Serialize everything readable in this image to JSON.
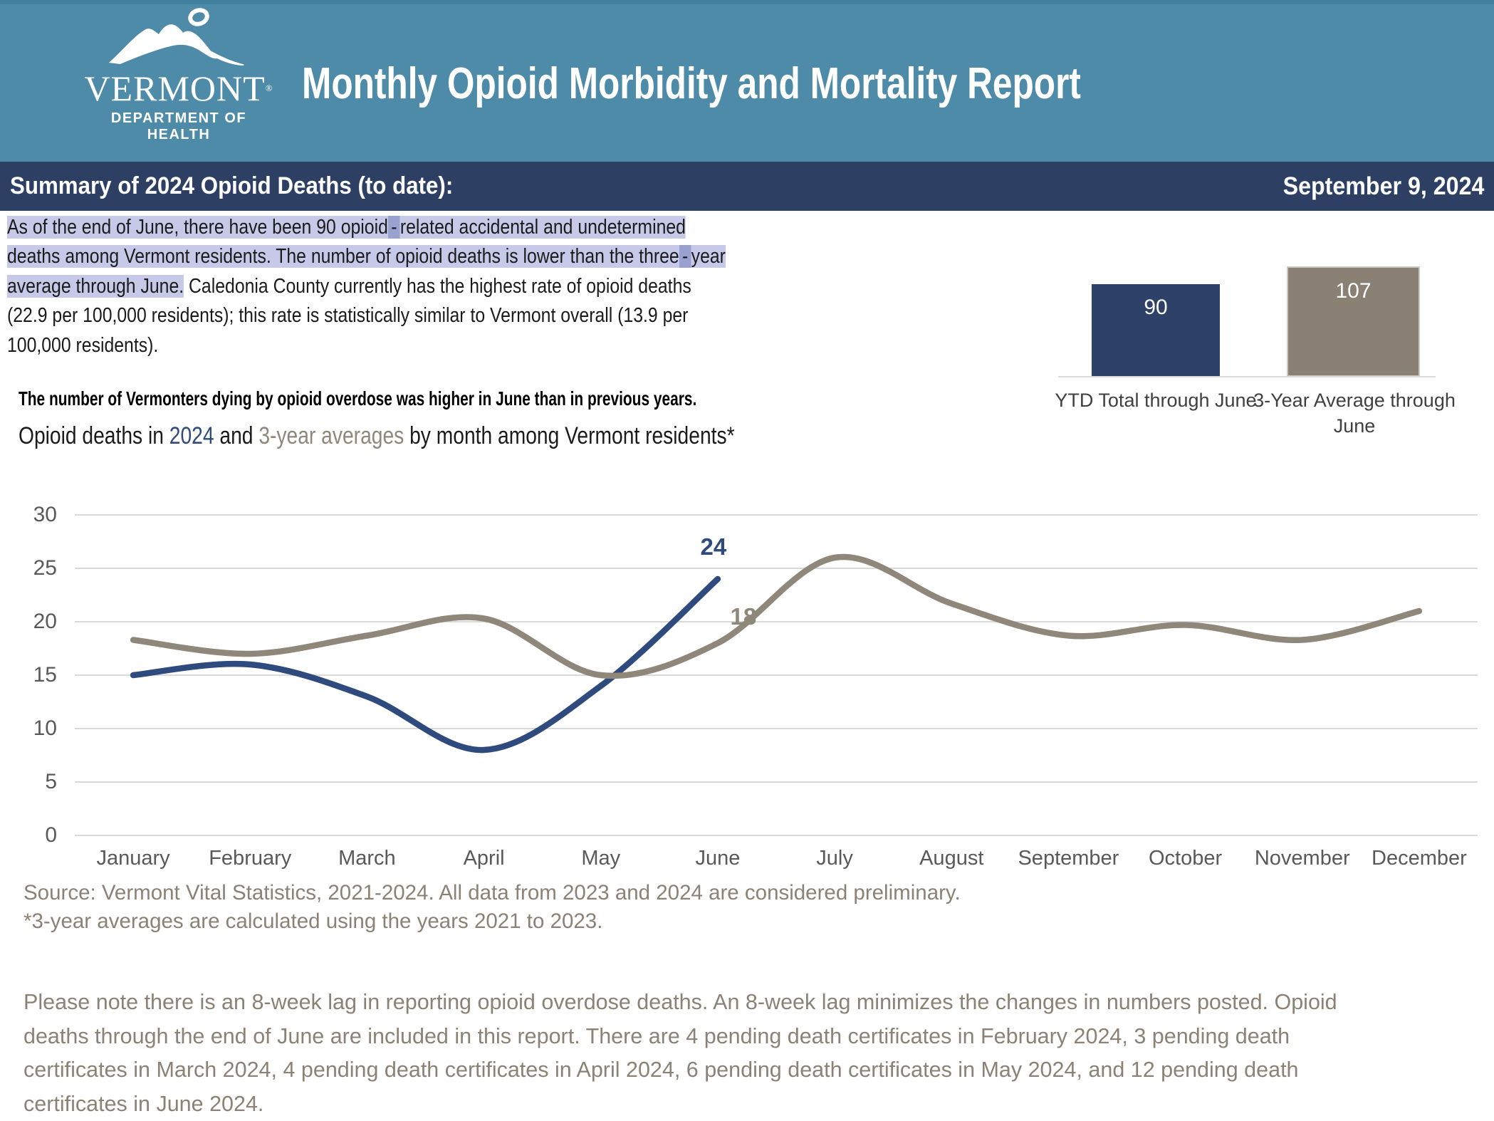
{
  "header": {
    "logo_name": "VERMONT",
    "logo_registered": "®",
    "logo_subtitle": "DEPARTMENT OF HEALTH",
    "title": "Monthly Opioid Morbidity and Mortality Report"
  },
  "summary_bar": {
    "title": "Summary of 2024 Opioid Deaths (to date):",
    "date": "September 9, 2024"
  },
  "summary_paragraph_lines": [
    [
      {
        "t": "As of the end of June, there have been 90 opioid",
        "s": "hl"
      },
      {
        "t": "-",
        "s": "hld"
      },
      {
        "t": "related accidental and undetermined",
        "s": "hl"
      }
    ],
    [
      {
        "t": "deaths among Vermont residents. The number of opioid deaths is lower than the three",
        "s": "hl"
      },
      {
        "t": "-",
        "s": "hld"
      },
      {
        "t": "year",
        "s": "hl"
      }
    ],
    [
      {
        "t": "average through June.",
        "s": "hl"
      },
      {
        "t": " Caledonia County currently has the highest rate of opioid deaths",
        "s": "pl"
      }
    ],
    [
      {
        "t": "(22.9 per 100,000 residents); this rate is statistically similar to Vermont overall (13.9 per",
        "s": "pl"
      }
    ],
    [
      {
        "t": "100,000 residents).",
        "s": "pl"
      }
    ]
  ],
  "headline": "The number of Vermonters dying by opioid overdose was higher in June than in previous years.",
  "chart_heading": {
    "pre": "Opioid deaths in ",
    "series_2024": "2024",
    "mid": " and ",
    "series_avg": "3-year averages",
    "post": " by month among Vermont residents*"
  },
  "source_lines": [
    "Source: Vermont Vital Statistics, 2021-2024. All data from 2023 and 2024 are considered preliminary.",
    "*3-year averages are calculated using the years 2021 to 2023."
  ],
  "footer_lines": [
    "Please note there is an 8-week lag in reporting opioid overdose deaths. An 8-week lag minimizes the changes in numbers posted. Opioid",
    "deaths through the end of June are included in this report. There are 4 pending death certificates in February 2024, 3 pending death",
    "certificates in March 2024, 4 pending death certificates in April 2024, 6 pending death certificates in May 2024, and 12 pending death",
    "certificates in June 2024."
  ],
  "colors": {
    "header_teal": "#4d8ba9",
    "summary_bar_navy": "#2d3f62",
    "series_2024_navy": "#2f4a7c",
    "series_avg_taupe": "#8f877a",
    "ytd_bar_navy": "#2e4269",
    "ytd_bar_taupe": "#8a8174",
    "highlight": "#c6cae8",
    "highlight_dark": "#98a1cf",
    "muted_text": "#8b8275",
    "axis_text": "#595959",
    "gridline": "#d9d9d9"
  },
  "chart_data": [
    {
      "type": "bar",
      "categories": [
        "YTD Total through June",
        "3-Year Average through June"
      ],
      "values": [
        90,
        107
      ],
      "colors": [
        "#2e4269",
        "#8a8174"
      ],
      "ylim": [
        0,
        120
      ],
      "grid": false,
      "legend_position": "none"
    },
    {
      "type": "line",
      "title": "Opioid deaths in 2024 and 3-year averages by month among Vermont residents*",
      "categories": [
        "January",
        "February",
        "March",
        "April",
        "May",
        "June",
        "July",
        "August",
        "September",
        "October",
        "November",
        "December"
      ],
      "series": [
        {
          "name": "2024",
          "color": "#2f4a7c",
          "values": [
            15,
            16,
            13,
            8,
            14,
            24
          ]
        },
        {
          "name": "3-year averages",
          "color": "#8f877a",
          "values": [
            18.3,
            17,
            18.7,
            20.3,
            15,
            18,
            26,
            21.7,
            18.7,
            19.7,
            18.3,
            21
          ]
        }
      ],
      "data_labels": [
        {
          "series": "2024",
          "category": "June",
          "text": "24"
        },
        {
          "series": "3-year averages",
          "category": "June",
          "text": "18"
        }
      ],
      "xlabel": "",
      "ylabel": "",
      "ylim": [
        0,
        30
      ],
      "yticks": [
        0,
        5,
        10,
        15,
        20,
        25,
        30
      ],
      "grid": true,
      "legend_position": "none"
    }
  ]
}
